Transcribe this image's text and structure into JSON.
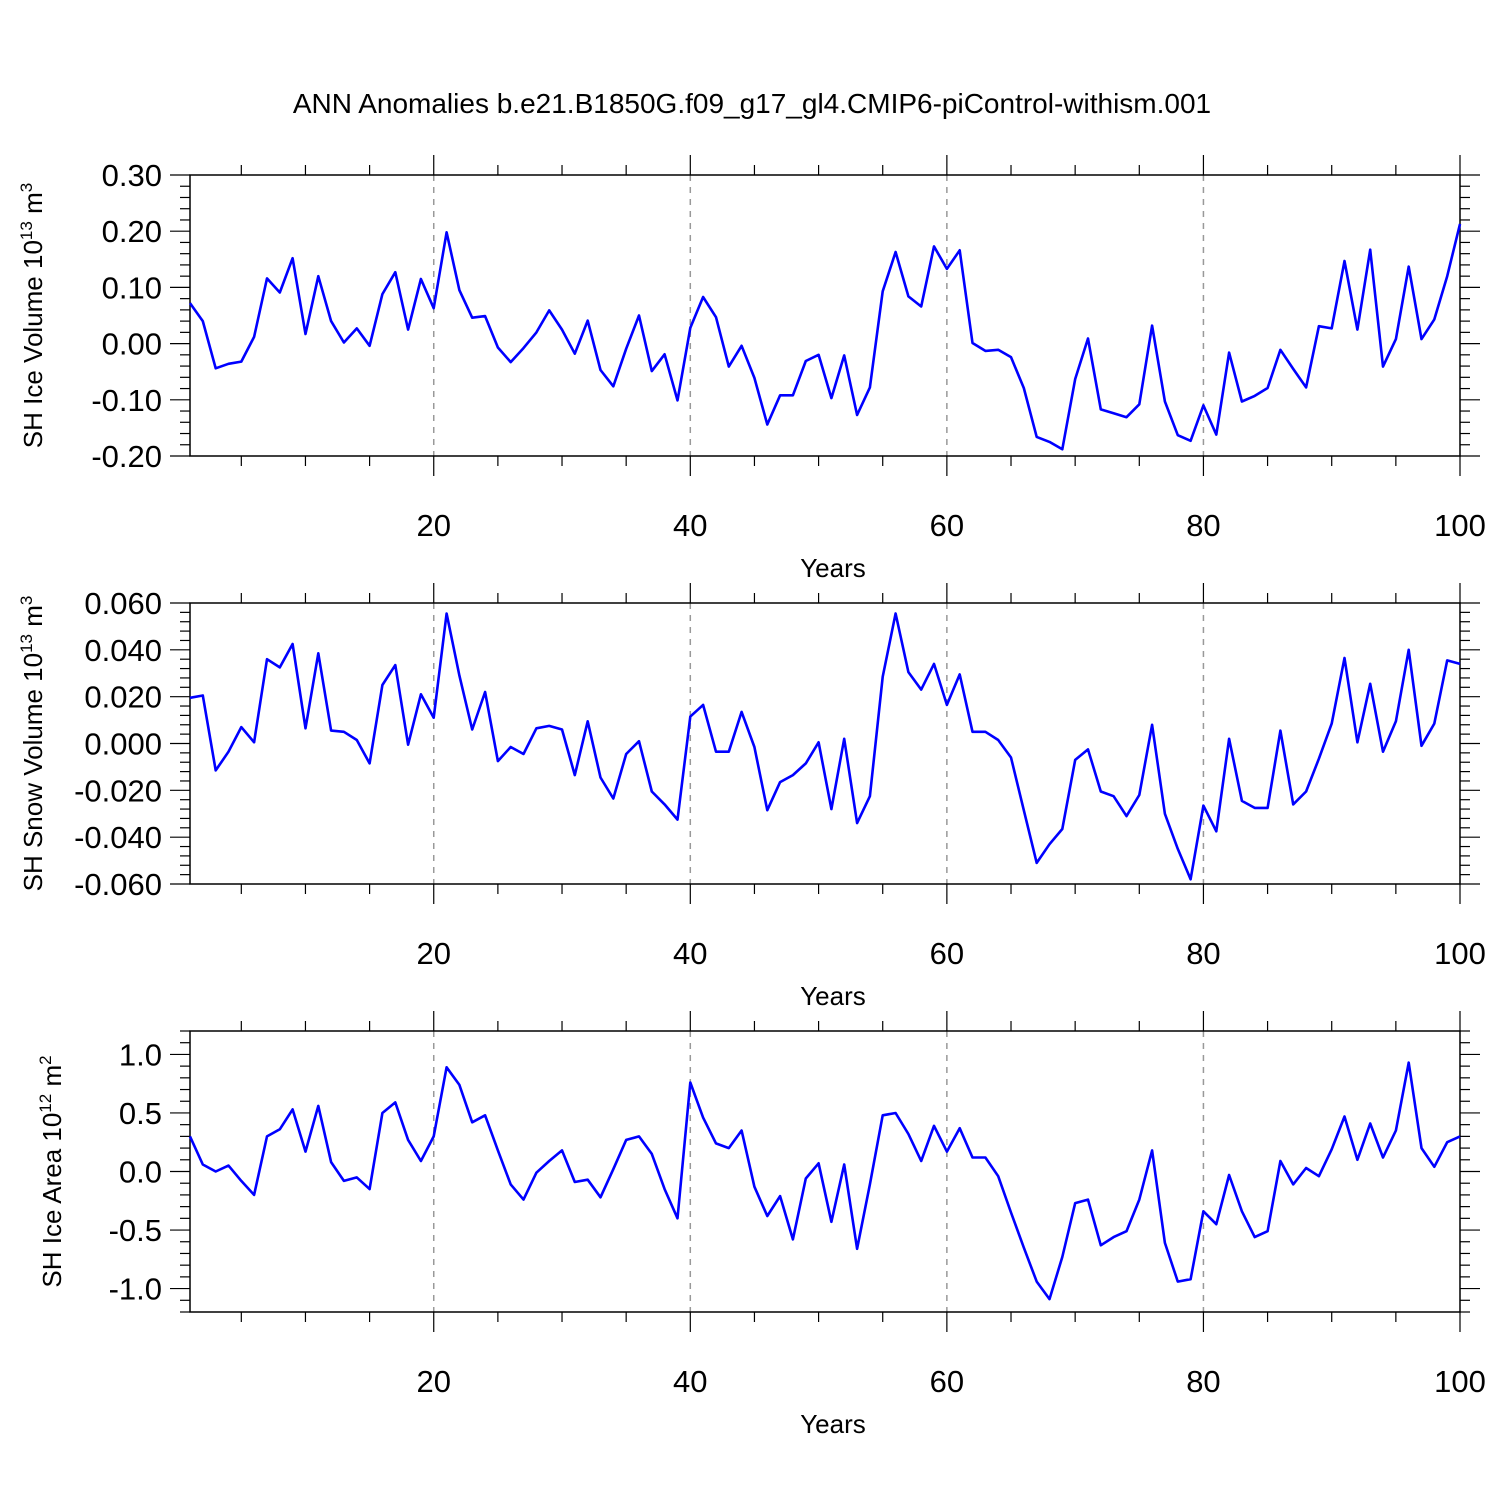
{
  "figure": {
    "title": "ANN Anomalies b.e21.B1850G.f09_g17_gl4.CMIP6-piControl-withism.001"
  },
  "chart_data": [
    {
      "type": "line",
      "title": "ANN Anomalies b.e21.B1850G.f09_g17_gl4.CMIP6-piControl-withism.001",
      "xlabel": "Years",
      "ylabel": "SH Ice Volume 10",
      "ylabel_exp": "13",
      "ylabel_unit": " m",
      "ylabel_unit_exp": "3",
      "xlim": [
        1,
        100
      ],
      "ylim": [
        -0.2,
        0.3
      ],
      "xticks": [
        20,
        40,
        60,
        80,
        100
      ],
      "xtick_labels": [
        "20",
        "40",
        "60",
        "80",
        "100"
      ],
      "yticks": [
        0.3,
        0.2,
        0.1,
        0.0,
        -0.1,
        -0.2
      ],
      "ytick_labels": [
        "0.30",
        "0.20",
        "0.10",
        "0.00",
        "-0.10",
        "-0.20"
      ],
      "grid": "vertical dashed at 20, 40, 60, 80",
      "series": [
        {
          "name": "SH Ice Volume",
          "color": "#0000ff",
          "values": [
            0.072,
            0.04,
            -0.044,
            -0.036,
            -0.032,
            0.012,
            0.116,
            0.091,
            0.152,
            0.017,
            0.12,
            0.04,
            0.002,
            0.027,
            -0.004,
            0.088,
            0.127,
            0.025,
            0.115,
            0.063,
            0.198,
            0.095,
            0.046,
            0.049,
            -0.007,
            -0.033,
            -0.008,
            0.02,
            0.059,
            0.025,
            -0.018,
            0.041,
            -0.047,
            -0.076,
            -0.009,
            0.05,
            -0.049,
            -0.019,
            -0.101,
            0.028,
            0.083,
            0.047,
            -0.041,
            -0.004,
            -0.061,
            -0.144,
            -0.092,
            -0.092,
            -0.031,
            -0.02,
            -0.097,
            -0.021,
            -0.127,
            -0.078,
            0.093,
            0.163,
            0.084,
            0.066,
            0.173,
            0.133,
            0.166,
            0.001,
            -0.013,
            -0.011,
            -0.024,
            -0.079,
            -0.166,
            -0.175,
            -0.188,
            -0.063,
            0.009,
            -0.117,
            -0.124,
            -0.131,
            -0.108,
            0.032,
            -0.103,
            -0.163,
            -0.173,
            -0.11,
            -0.162,
            -0.016,
            -0.103,
            -0.093,
            -0.079,
            -0.011,
            -0.045,
            -0.078,
            0.031,
            0.027,
            0.147,
            0.025,
            0.167,
            -0.041,
            0.008,
            0.137,
            0.008,
            0.043,
            0.12,
            0.213
          ]
        }
      ]
    },
    {
      "type": "line",
      "xlabel": "Years",
      "ylabel": "SH Snow Volume 10",
      "ylabel_exp": "13",
      "ylabel_unit": " m",
      "ylabel_unit_exp": "3",
      "xlim": [
        1,
        100
      ],
      "ylim": [
        -0.06,
        0.06
      ],
      "xticks": [
        20,
        40,
        60,
        80,
        100
      ],
      "xtick_labels": [
        "20",
        "40",
        "60",
        "80",
        "100"
      ],
      "yticks": [
        0.06,
        0.04,
        0.02,
        0.0,
        -0.02,
        -0.04,
        -0.06
      ],
      "ytick_labels": [
        "0.060",
        "0.040",
        "0.020",
        "0.000",
        "-0.020",
        "-0.040",
        "-0.060"
      ],
      "grid": "vertical dashed at 20, 40, 60, 80",
      "series": [
        {
          "name": "SH Snow Volume",
          "color": "#0000ff",
          "values": [
            0.0195,
            0.0205,
            -0.0115,
            -0.0035,
            0.007,
            0.0005,
            0.036,
            0.0325,
            0.0425,
            0.0065,
            0.0385,
            0.0055,
            0.005,
            0.0015,
            -0.0085,
            0.025,
            0.0335,
            -0.0005,
            0.021,
            0.011,
            0.0555,
            0.029,
            0.006,
            0.022,
            -0.0075,
            -0.0015,
            -0.0045,
            0.0065,
            0.0075,
            0.006,
            -0.0135,
            0.0095,
            -0.0145,
            -0.0235,
            -0.0045,
            0.001,
            -0.0205,
            -0.026,
            -0.0325,
            0.0115,
            0.0165,
            -0.0035,
            -0.0035,
            0.0135,
            -0.0015,
            -0.0285,
            -0.0165,
            -0.0135,
            -0.0085,
            0.0005,
            -0.028,
            0.002,
            -0.034,
            -0.0225,
            0.0285,
            0.0555,
            0.0305,
            0.023,
            0.034,
            0.0165,
            0.0295,
            0.005,
            0.005,
            0.0015,
            -0.006,
            -0.0285,
            -0.051,
            -0.043,
            -0.0365,
            -0.007,
            -0.0025,
            -0.0205,
            -0.0225,
            -0.031,
            -0.022,
            0.008,
            -0.03,
            -0.045,
            -0.058,
            -0.0265,
            -0.0375,
            0.002,
            -0.0245,
            -0.0275,
            -0.0275,
            0.0055,
            -0.026,
            -0.0205,
            -0.0065,
            0.0085,
            0.0365,
            0.0005,
            0.0255,
            -0.0035,
            0.0095,
            0.04,
            -0.001,
            0.0085,
            0.0355,
            0.034
          ]
        }
      ]
    },
    {
      "type": "line",
      "xlabel": "Years",
      "ylabel": "SH Ice Area 10",
      "ylabel_exp": "12",
      "ylabel_unit": " m",
      "ylabel_unit_exp": "2",
      "xlim": [
        1,
        100
      ],
      "ylim": [
        -1.2,
        1.2
      ],
      "xticks": [
        20,
        40,
        60,
        80,
        100
      ],
      "xtick_labels": [
        "20",
        "40",
        "60",
        "80",
        "100"
      ],
      "yticks": [
        1.0,
        0.5,
        0.0,
        -0.5,
        -1.0
      ],
      "ytick_labels": [
        "1.0",
        "0.5",
        "0.0",
        "-0.5",
        "-1.0"
      ],
      "grid": "vertical dashed at 20, 40, 60, 80",
      "series": [
        {
          "name": "SH Ice Area",
          "color": "#0000ff",
          "values": [
            0.3,
            0.06,
            0.0,
            0.05,
            -0.08,
            -0.2,
            0.3,
            0.36,
            0.53,
            0.17,
            0.56,
            0.08,
            -0.08,
            -0.05,
            -0.15,
            0.5,
            0.59,
            0.27,
            0.09,
            0.3,
            0.89,
            0.74,
            0.42,
            0.48,
            0.18,
            -0.11,
            -0.24,
            -0.01,
            0.09,
            0.18,
            -0.09,
            -0.07,
            -0.22,
            0.02,
            0.27,
            0.3,
            0.15,
            -0.15,
            -0.4,
            0.76,
            0.46,
            0.24,
            0.2,
            0.35,
            -0.13,
            -0.38,
            -0.21,
            -0.58,
            -0.06,
            0.07,
            -0.43,
            0.06,
            -0.66,
            -0.11,
            0.48,
            0.5,
            0.32,
            0.09,
            0.39,
            0.17,
            0.37,
            0.12,
            0.12,
            -0.04,
            -0.35,
            -0.65,
            -0.94,
            -1.09,
            -0.73,
            -0.27,
            -0.24,
            -0.63,
            -0.56,
            -0.51,
            -0.24,
            0.18,
            -0.61,
            -0.94,
            -0.92,
            -0.34,
            -0.45,
            -0.03,
            -0.34,
            -0.56,
            -0.51,
            0.09,
            -0.11,
            0.03,
            -0.04,
            0.19,
            0.47,
            0.1,
            0.41,
            0.12,
            0.35,
            0.93,
            0.2,
            0.04,
            0.25,
            0.3
          ]
        }
      ]
    }
  ]
}
